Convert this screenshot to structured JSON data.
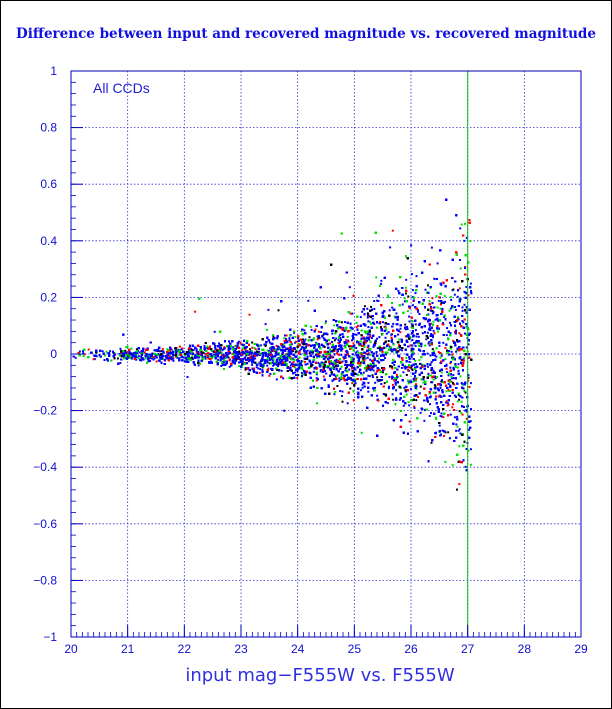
{
  "chart_data": {
    "type": "scatter",
    "title": "Difference between input and recovered magnitude vs. recovered magnitude",
    "xlabel": "input mag−F555W vs. F555W",
    "ylabel": "",
    "annotation": "All CCDs",
    "xlim": [
      20,
      29
    ],
    "ylim": [
      -1,
      1
    ],
    "x_ticks": [
      "20",
      "21",
      "22",
      "23",
      "24",
      "25",
      "26",
      "27",
      "28",
      "29"
    ],
    "y_ticks": [
      "−1",
      "−0.8",
      "−0.6",
      "−0.4",
      "−0.2",
      "0",
      "0.2",
      "0.4",
      "0.6",
      "0.8",
      "1"
    ],
    "grid": true,
    "colors": {
      "series": [
        "#0000ff",
        "#00e000",
        "#ff0000",
        "#000000"
      ],
      "axis": "#0000c0",
      "title": "#1010e0"
    },
    "envelope": {
      "x": [
        20.0,
        21.0,
        22.0,
        23.0,
        23.5,
        24.0,
        24.5,
        25.0,
        25.5,
        26.0,
        26.5,
        26.9,
        27.05
      ],
      "sigma": [
        0.01,
        0.012,
        0.016,
        0.025,
        0.032,
        0.045,
        0.06,
        0.08,
        0.1,
        0.13,
        0.17,
        0.22,
        0.25
      ]
    },
    "approx_count": 14000
  }
}
